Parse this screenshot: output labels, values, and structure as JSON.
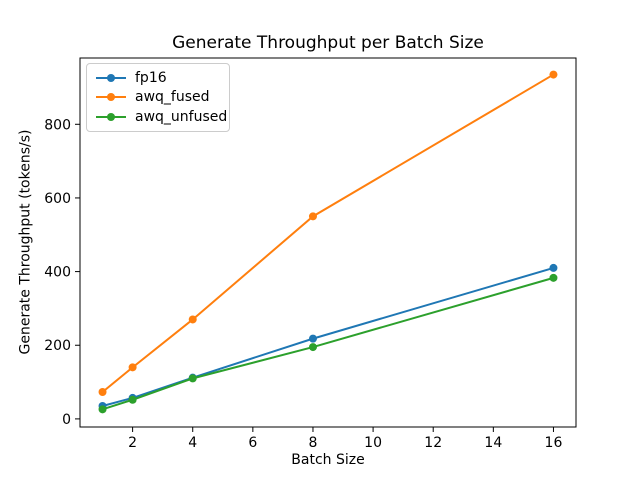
{
  "chart_data": {
    "type": "line",
    "title": "Generate Throughput per Batch Size",
    "xlabel": "Batch Size",
    "ylabel": "Generate Throughput (tokens/s)",
    "x": [
      1,
      2,
      4,
      8,
      16
    ],
    "series": [
      {
        "name": "fp16",
        "color": "#1f77b4",
        "values": [
          35,
          57,
          112,
          218,
          410
        ]
      },
      {
        "name": "awq_fused",
        "color": "#ff7f0e",
        "values": [
          73,
          140,
          270,
          550,
          935
        ]
      },
      {
        "name": "awq_unfused",
        "color": "#2ca02c",
        "values": [
          26,
          52,
          110,
          195,
          383
        ]
      }
    ],
    "xlim": [
      0.25,
      16.75
    ],
    "ylim": [
      -22,
      980
    ],
    "xticks": [
      2,
      4,
      6,
      8,
      10,
      12,
      14,
      16
    ],
    "yticks": [
      0,
      200,
      400,
      600,
      800
    ],
    "grid": false,
    "legend_position": "upper left",
    "marker": "o",
    "colors": {
      "spine": "#000000",
      "text": "#000000",
      "legend_border": "#cccccc",
      "background": "#ffffff"
    }
  }
}
